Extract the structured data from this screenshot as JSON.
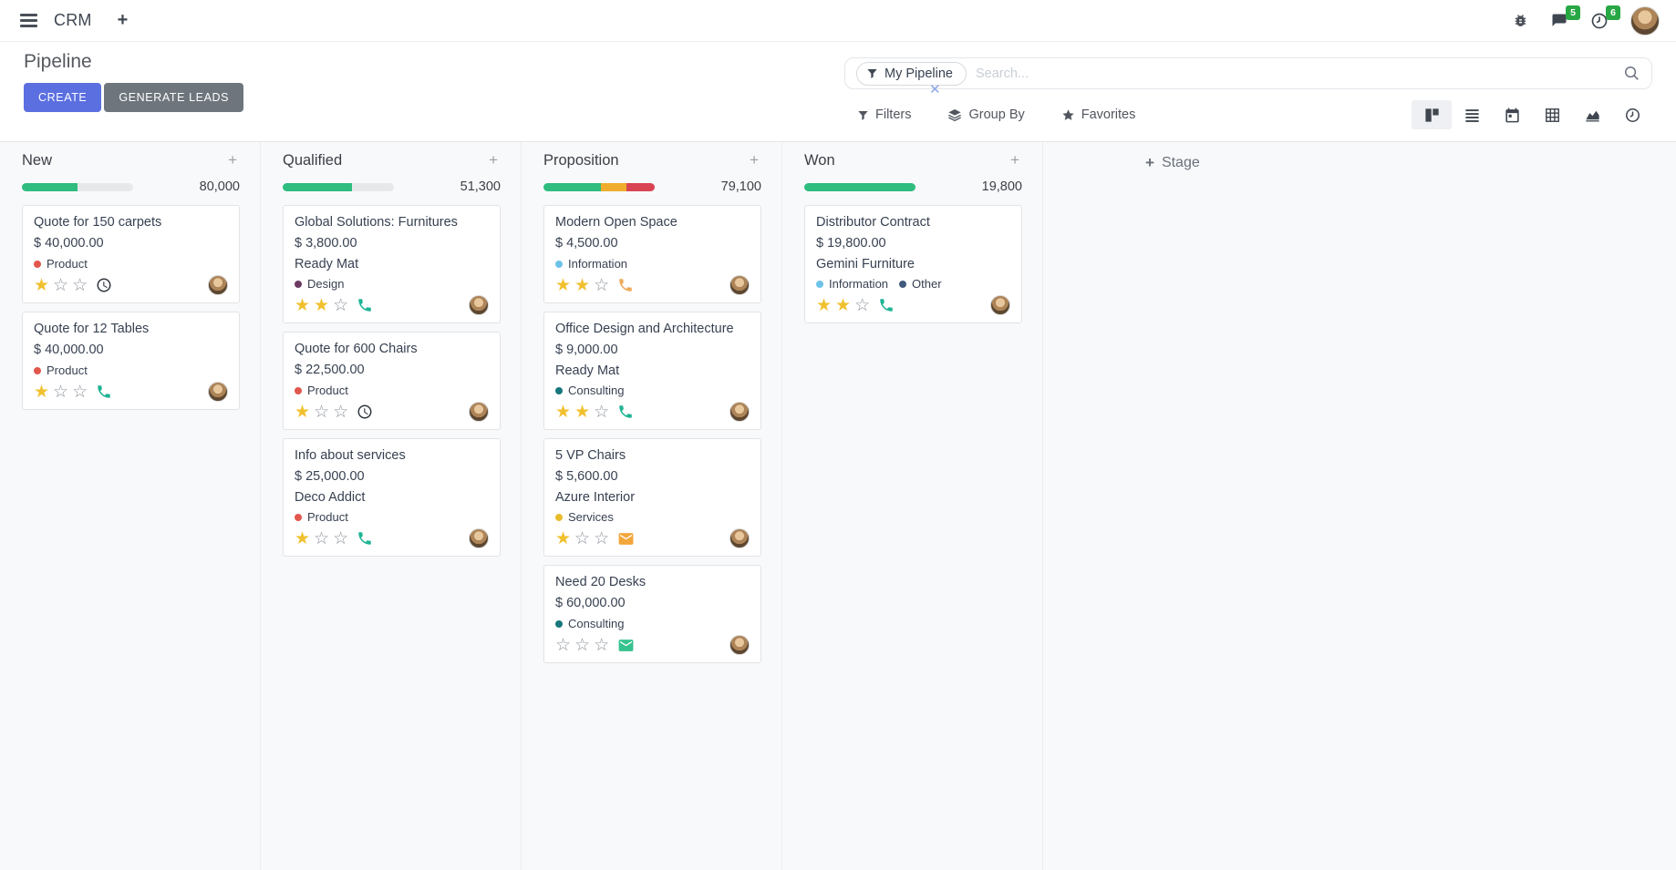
{
  "navbar": {
    "app_name": "CRM",
    "messages_badge": "5",
    "activities_badge": "6"
  },
  "control_panel": {
    "title": "Pipeline",
    "create_label": "CREATE",
    "generate_leads_label": "GENERATE LEADS",
    "search": {
      "facet_label": "My Pipeline",
      "placeholder": "Search..."
    },
    "filters_label": "Filters",
    "group_by_label": "Group By",
    "favorites_label": "Favorites"
  },
  "colors": {
    "primary_button": "#5b6fe0",
    "secondary_button": "#6e757c",
    "progress_green": "#2ebd7e",
    "progress_orange": "#f0ad2d",
    "progress_red": "#d94453",
    "star_gold": "#f0c02e",
    "badge_green": "#28a745"
  },
  "kanban": {
    "add_stage_label": "Stage",
    "columns": [
      {
        "title": "New",
        "total": "80,000",
        "progress": [
          {
            "color": "#2ebd7e",
            "pct": 50
          }
        ],
        "cards": [
          {
            "title": "Quote for 150 carpets",
            "amount": "$ 40,000.00",
            "partner": "",
            "tags": [
              {
                "label": "Product",
                "color": "#e2574c"
              }
            ],
            "stars": 1,
            "action": {
              "type": "clock",
              "color": "#2f3640"
            }
          },
          {
            "title": "Quote for 12 Tables",
            "amount": "$ 40,000.00",
            "partner": "",
            "tags": [
              {
                "label": "Product",
                "color": "#e2574c"
              }
            ],
            "stars": 1,
            "action": {
              "type": "phone",
              "color": "#1fb495"
            }
          }
        ]
      },
      {
        "title": "Qualified",
        "total": "51,300",
        "progress": [
          {
            "color": "#2ebd7e",
            "pct": 62
          }
        ],
        "cards": [
          {
            "title": "Global Solutions: Furnitures",
            "amount": "$ 3,800.00",
            "partner": "Ready Mat",
            "tags": [
              {
                "label": "Design",
                "color": "#6d3a63"
              }
            ],
            "stars": 2,
            "action": {
              "type": "phone",
              "color": "#1fb495"
            }
          },
          {
            "title": "Quote for 600 Chairs",
            "amount": "$ 22,500.00",
            "partner": "",
            "tags": [
              {
                "label": "Product",
                "color": "#e2574c"
              }
            ],
            "stars": 1,
            "action": {
              "type": "clock",
              "color": "#2f3640"
            }
          },
          {
            "title": "Info about services",
            "amount": "$ 25,000.00",
            "partner": "Deco Addict",
            "tags": [
              {
                "label": "Product",
                "color": "#e2574c"
              }
            ],
            "stars": 1,
            "action": {
              "type": "phone",
              "color": "#1fb495"
            }
          }
        ]
      },
      {
        "title": "Proposition",
        "total": "79,100",
        "progress": [
          {
            "color": "#2ebd7e",
            "pct": 52
          },
          {
            "color": "#f0ad2d",
            "pct": 23
          },
          {
            "color": "#d94453",
            "pct": 25
          }
        ],
        "cards": [
          {
            "title": "Modern Open Space",
            "amount": "$ 4,500.00",
            "partner": "",
            "tags": [
              {
                "label": "Information",
                "color": "#6ec2e8"
              }
            ],
            "stars": 2,
            "action": {
              "type": "phone",
              "color": "#f0a858"
            }
          },
          {
            "title": "Office Design and Architecture",
            "amount": "$ 9,000.00",
            "partner": "Ready Mat",
            "tags": [
              {
                "label": "Consulting",
                "color": "#17777c"
              }
            ],
            "stars": 2,
            "action": {
              "type": "phone",
              "color": "#1fb495"
            }
          },
          {
            "title": "5 VP Chairs",
            "amount": "$ 5,600.00",
            "partner": "Azure Interior",
            "tags": [
              {
                "label": "Services",
                "color": "#e8bd2d"
              }
            ],
            "stars": 1,
            "action": {
              "type": "mail",
              "color": "#f2a63b"
            }
          },
          {
            "title": "Need 20 Desks",
            "amount": "$ 60,000.00",
            "partner": "",
            "tags": [
              {
                "label": "Consulting",
                "color": "#17777c"
              }
            ],
            "stars": 0,
            "action": {
              "type": "mail",
              "color": "#35c28f"
            }
          }
        ]
      },
      {
        "title": "Won",
        "total": "19,800",
        "progress": [
          {
            "color": "#2ebd7e",
            "pct": 100
          }
        ],
        "cards": [
          {
            "title": "Distributor Contract",
            "amount": "$ 19,800.00",
            "partner": "Gemini Furniture",
            "tags": [
              {
                "label": "Information",
                "color": "#6ec2e8"
              },
              {
                "label": "Other",
                "color": "#41597c"
              }
            ],
            "stars": 2,
            "action": {
              "type": "phone",
              "color": "#1fb495"
            }
          }
        ]
      }
    ]
  }
}
